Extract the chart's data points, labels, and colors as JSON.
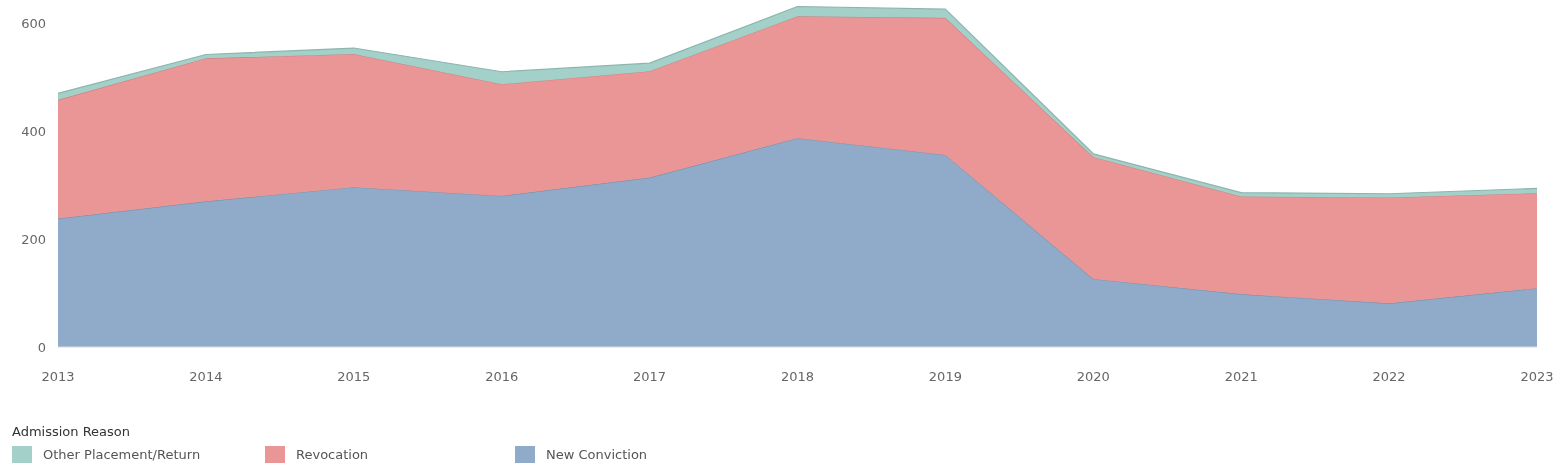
{
  "chart_data": {
    "type": "area",
    "stacked": true,
    "categories": [
      "2013",
      "2014",
      "2015",
      "2016",
      "2017",
      "2018",
      "2019",
      "2020",
      "2021",
      "2022",
      "2023"
    ],
    "series": [
      {
        "name": "New Conviction",
        "color": "#8fabc9",
        "values": [
          238,
          270,
          296,
          280,
          314,
          387,
          356,
          126,
          98,
          81,
          109
        ]
      },
      {
        "name": "Revocation",
        "color": "#eb9696",
        "values": [
          220,
          265,
          247,
          207,
          197,
          226,
          254,
          226,
          181,
          196,
          176
        ]
      },
      {
        "name": "Other Placement/Return",
        "color": "#a3d1c9",
        "values": [
          12,
          7,
          11,
          23,
          15,
          18,
          16,
          6,
          7,
          7,
          9
        ]
      }
    ],
    "ylim": [
      0,
      643
    ],
    "yticks": [
      0,
      200,
      400,
      600
    ],
    "legend": "bottom",
    "legend_title": "Admission Reason"
  }
}
